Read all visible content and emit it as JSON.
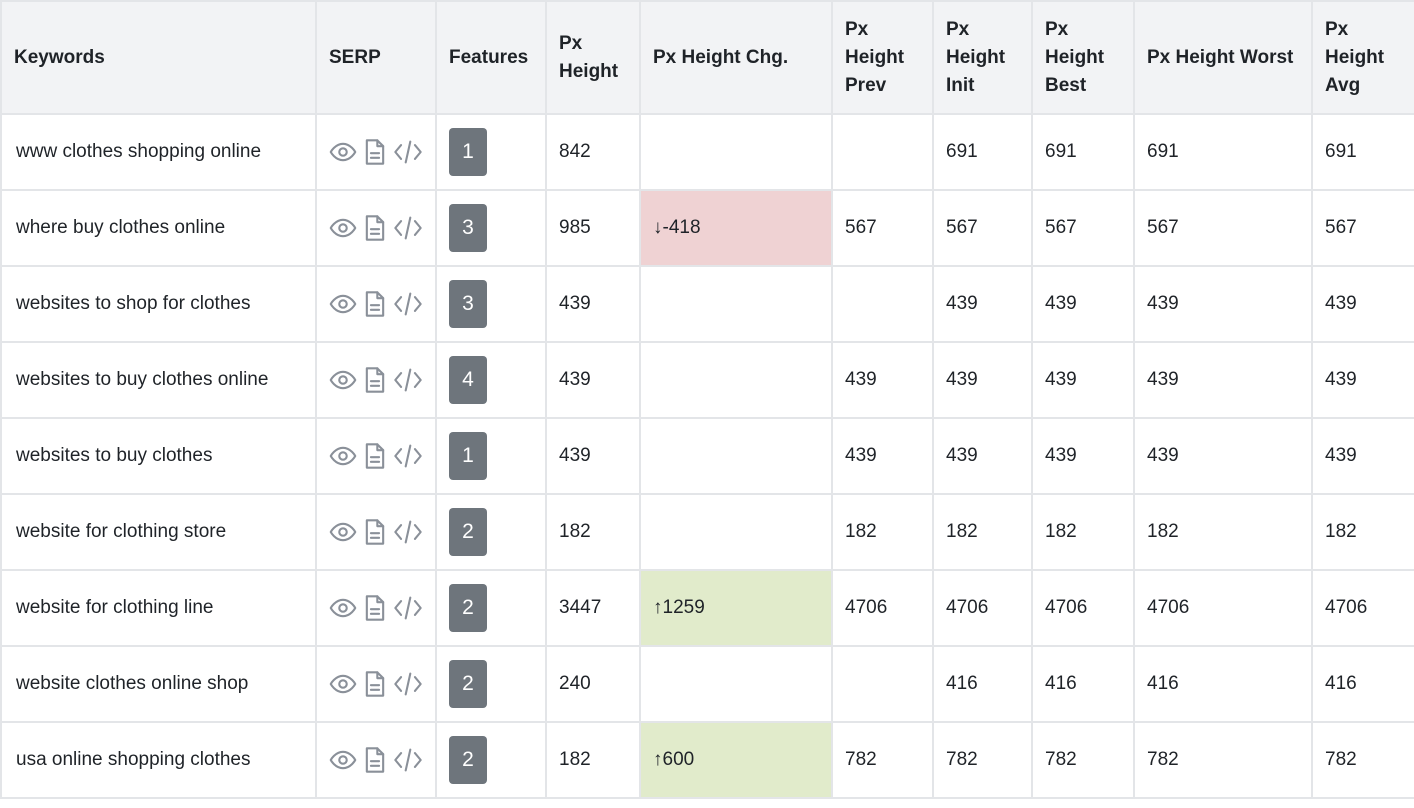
{
  "columns": [
    "Keywords",
    "SERP",
    "Features",
    "Px Height",
    "Px Height Chg.",
    "Px Height Prev",
    "Px Height Init",
    "Px Height Best",
    "Px Height Worst",
    "Px Height Avg"
  ],
  "icons": [
    "eye-icon",
    "document-icon",
    "code-icon"
  ],
  "colors": {
    "badge": "#6e757c",
    "change_down": "#efd2d3",
    "change_up": "#e1ebcb",
    "icon": "#8a9099"
  },
  "rows": [
    {
      "keyword": "www clothes shopping online",
      "features": "1",
      "px_height": "842",
      "change": "",
      "change_dir": "",
      "prev": "",
      "init": "691",
      "best": "691",
      "worst": "691",
      "avg": "691"
    },
    {
      "keyword": "where buy clothes online",
      "features": "3",
      "px_height": "985",
      "change": "↓-418",
      "change_dir": "down",
      "prev": "567",
      "init": "567",
      "best": "567",
      "worst": "567",
      "avg": "567"
    },
    {
      "keyword": "websites to shop for clothes",
      "features": "3",
      "px_height": "439",
      "change": "",
      "change_dir": "",
      "prev": "",
      "init": "439",
      "best": "439",
      "worst": "439",
      "avg": "439"
    },
    {
      "keyword": "websites to buy clothes online",
      "features": "4",
      "px_height": "439",
      "change": "",
      "change_dir": "",
      "prev": "439",
      "init": "439",
      "best": "439",
      "worst": "439",
      "avg": "439"
    },
    {
      "keyword": "websites to buy clothes",
      "features": "1",
      "px_height": "439",
      "change": "",
      "change_dir": "",
      "prev": "439",
      "init": "439",
      "best": "439",
      "worst": "439",
      "avg": "439"
    },
    {
      "keyword": "website for clothing store",
      "features": "2",
      "px_height": "182",
      "change": "",
      "change_dir": "",
      "prev": "182",
      "init": "182",
      "best": "182",
      "worst": "182",
      "avg": "182"
    },
    {
      "keyword": "website for clothing line",
      "features": "2",
      "px_height": "3447",
      "change": "↑1259",
      "change_dir": "up",
      "prev": "4706",
      "init": "4706",
      "best": "4706",
      "worst": "4706",
      "avg": "4706"
    },
    {
      "keyword": "website clothes online shop",
      "features": "2",
      "px_height": "240",
      "change": "",
      "change_dir": "",
      "prev": "",
      "init": "416",
      "best": "416",
      "worst": "416",
      "avg": "416"
    },
    {
      "keyword": "usa online shopping clothes",
      "features": "2",
      "px_height": "182",
      "change": "↑600",
      "change_dir": "up",
      "prev": "782",
      "init": "782",
      "best": "782",
      "worst": "782",
      "avg": "782"
    }
  ]
}
